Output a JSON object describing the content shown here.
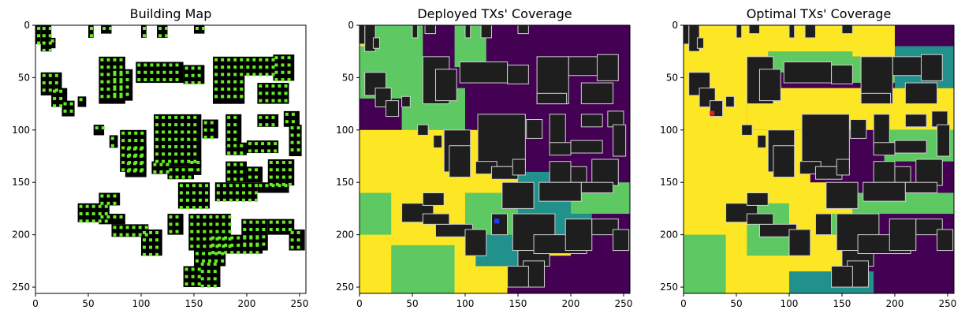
{
  "figure": {
    "colors": {
      "background": "#ffffff",
      "building": "#000000",
      "building_gray": "#1e1e1e",
      "building_edge": "#d0d0d0",
      "tx_candidate": "#66ee22",
      "deployed_tx": "#1f3fff",
      "optimal_tx": "#e02020",
      "viridis": [
        "#440154",
        "#21918c",
        "#5ec962",
        "#fde725"
      ]
    }
  },
  "chart_data": [
    {
      "type": "heatmap",
      "title": "Building Map",
      "xlim": [
        0,
        255
      ],
      "ylim": [
        255,
        0
      ],
      "xticks": [
        0,
        50,
        100,
        150,
        200,
        250
      ],
      "yticks": [
        0,
        50,
        100,
        150,
        200,
        250
      ],
      "grid": false,
      "layers": [
        "buildings",
        "tx candidate points"
      ]
    },
    {
      "type": "heatmap",
      "title": "Deployed TXs' Coverage",
      "xlim": [
        0,
        255
      ],
      "ylim": [
        255,
        0
      ],
      "xticks": [
        0,
        50,
        100,
        150,
        200,
        250
      ],
      "yticks": [
        0,
        50,
        100,
        150,
        200,
        250
      ],
      "grid": false,
      "colormap": "viridis",
      "tx_marker": {
        "x": 130,
        "y": 187
      }
    },
    {
      "type": "heatmap",
      "title": "Optimal TXs' Coverage",
      "xlim": [
        0,
        255
      ],
      "ylim": [
        255,
        0
      ],
      "xticks": [
        0,
        50,
        100,
        150,
        200,
        250
      ],
      "yticks": [
        0,
        50,
        100,
        150,
        200,
        250
      ],
      "grid": false,
      "colormap": "viridis",
      "tx_marker": {
        "x": 27,
        "y": 84
      }
    }
  ]
}
